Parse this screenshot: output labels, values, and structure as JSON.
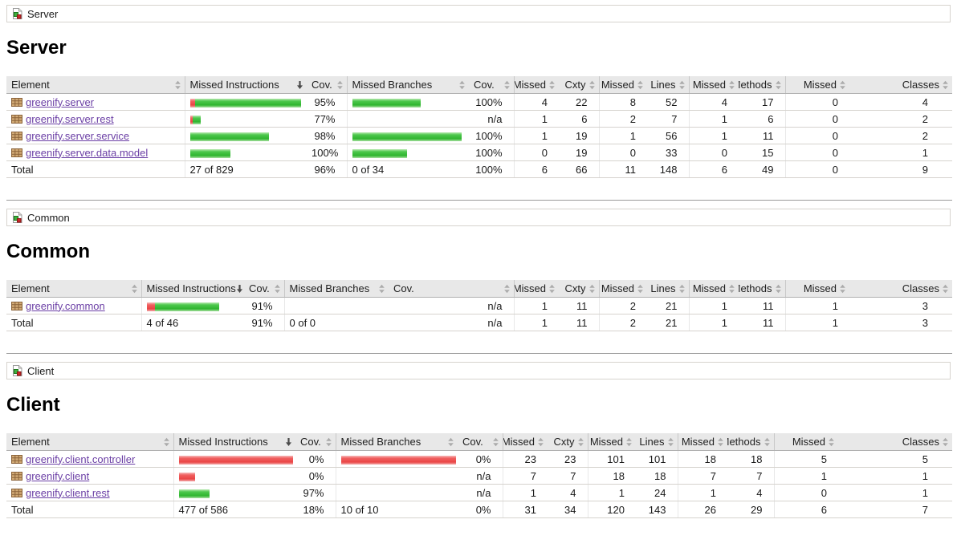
{
  "colors": {
    "link": "#6b3fa5",
    "bar_green": "#3fc33f",
    "bar_red": "#ef5a5a",
    "header_bg": "#e8e8e8"
  },
  "columns": [
    {
      "label": "Element",
      "sort": "none"
    },
    {
      "label": "Missed Instructions",
      "sort": "desc"
    },
    {
      "label": "Cov.",
      "sort": "none"
    },
    {
      "label": "Missed Branches",
      "sort": "none"
    },
    {
      "label": "Cov.",
      "sort": "none"
    },
    {
      "label": "Missed",
      "sort": "none"
    },
    {
      "label": "Cxty",
      "sort": "none"
    },
    {
      "label": "Missed",
      "sort": "none"
    },
    {
      "label": "Lines",
      "sort": "none"
    },
    {
      "label": "Missed",
      "sort": "none"
    },
    {
      "label": "Methods",
      "sort": "none"
    },
    {
      "label": "Missed",
      "sort": "none"
    },
    {
      "label": "Classes",
      "sort": "none"
    }
  ],
  "sections": [
    {
      "breadcrumb": "Server",
      "title": "Server",
      "rows": [
        {
          "name": "greenify.server",
          "instr_bar": {
            "missed": 6,
            "covered": 132
          },
          "instr_cov": "95%",
          "branch_bar": {
            "missed": 0,
            "covered": 85
          },
          "branch_cov": "100%",
          "counters": [
            "4",
            "22",
            "8",
            "52",
            "4",
            "17",
            "0",
            "4"
          ]
        },
        {
          "name": "greenify.server.rest",
          "instr_bar": {
            "missed": 3,
            "covered": 10
          },
          "instr_cov": "77%",
          "branch_bar": {
            "missed": 0,
            "covered": 0
          },
          "branch_cov": "n/a",
          "counters": [
            "1",
            "6",
            "2",
            "7",
            "1",
            "6",
            "0",
            "2"
          ]
        },
        {
          "name": "greenify.server.service",
          "instr_bar": {
            "missed": 0,
            "covered": 98
          },
          "instr_cov": "98%",
          "branch_bar": {
            "missed": 0,
            "covered": 136
          },
          "branch_cov": "100%",
          "counters": [
            "1",
            "19",
            "1",
            "56",
            "1",
            "11",
            "0",
            "2"
          ]
        },
        {
          "name": "greenify.server.data.model",
          "instr_bar": {
            "missed": 0,
            "covered": 50
          },
          "instr_cov": "100%",
          "branch_bar": {
            "missed": 0,
            "covered": 68
          },
          "branch_cov": "100%",
          "counters": [
            "0",
            "19",
            "0",
            "33",
            "0",
            "15",
            "0",
            "1"
          ]
        }
      ],
      "total": {
        "label": "Total",
        "instr": "27 of 829",
        "instr_cov": "96%",
        "branch": "0 of 34",
        "branch_cov": "100%",
        "counters": [
          "6",
          "66",
          "11",
          "148",
          "6",
          "49",
          "0",
          "9"
        ]
      }
    },
    {
      "breadcrumb": "Common",
      "title": "Common",
      "rows": [
        {
          "name": "greenify.common",
          "instr_bar": {
            "missed": 10,
            "covered": 80
          },
          "instr_cov": "91%",
          "branch_bar": {
            "missed": 0,
            "covered": 0
          },
          "branch_cov": "n/a",
          "counters": [
            "1",
            "11",
            "2",
            "21",
            "1",
            "11",
            "1",
            "3"
          ]
        }
      ],
      "total": {
        "label": "Total",
        "instr": "4 of 46",
        "instr_cov": "91%",
        "branch": "0 of 0",
        "branch_cov": "n/a",
        "counters": [
          "1",
          "11",
          "2",
          "21",
          "1",
          "11",
          "1",
          "3"
        ]
      }
    },
    {
      "breadcrumb": "Client",
      "title": "Client",
      "rows": [
        {
          "name": "greenify.client.controller",
          "instr_bar": {
            "missed": 142,
            "covered": 0
          },
          "instr_cov": "0%",
          "branch_bar": {
            "missed": 143,
            "covered": 0
          },
          "branch_cov": "0%",
          "counters": [
            "23",
            "23",
            "101",
            "101",
            "18",
            "18",
            "5",
            "5"
          ]
        },
        {
          "name": "greenify.client",
          "instr_bar": {
            "missed": 20,
            "covered": 0
          },
          "instr_cov": "0%",
          "branch_bar": {
            "missed": 0,
            "covered": 0
          },
          "branch_cov": "n/a",
          "counters": [
            "7",
            "7",
            "18",
            "18",
            "7",
            "7",
            "1",
            "1"
          ]
        },
        {
          "name": "greenify.client.rest",
          "instr_bar": {
            "missed": 0,
            "covered": 38
          },
          "instr_cov": "97%",
          "branch_bar": {
            "missed": 0,
            "covered": 0
          },
          "branch_cov": "n/a",
          "counters": [
            "1",
            "4",
            "1",
            "24",
            "1",
            "4",
            "0",
            "1"
          ]
        }
      ],
      "total": {
        "label": "Total",
        "instr": "477 of 586",
        "instr_cov": "18%",
        "branch": "10 of 10",
        "branch_cov": "0%",
        "counters": [
          "31",
          "34",
          "120",
          "143",
          "26",
          "29",
          "6",
          "7"
        ]
      }
    }
  ]
}
